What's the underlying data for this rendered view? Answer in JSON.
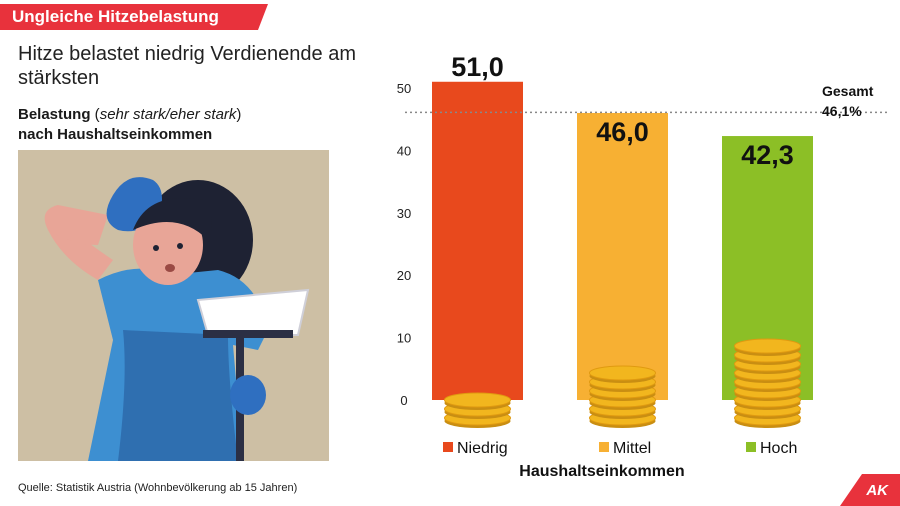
{
  "header": {
    "badge": "Ungleiche Hitzebelastung"
  },
  "headline": "Hitze belastet niedrig Verdienende am stärksten",
  "subtitle": {
    "bold_prefix": "Belastung",
    "italic": "sehr stark/eher stark",
    "line2": "nach Haushaltseinkommen"
  },
  "source": "Quelle: Statistik Austria (Wohnbevölkerung ab 15 Jahren)",
  "logo": "AK",
  "colors": {
    "banner": "#e8323c",
    "niedrig": "#e8491d",
    "mittel": "#f7b033",
    "hoch": "#8cbf26",
    "coin": "#f2b61e"
  },
  "chart_data": {
    "type": "bar",
    "categories": [
      "Niedrig",
      "Mittel",
      "Hoch"
    ],
    "values": [
      51.0,
      46.0,
      42.3
    ],
    "value_labels": [
      "51,0",
      "46,0",
      "42,3"
    ],
    "xlabel": "Haushaltseinkommen",
    "ylabel": "",
    "ylim": [
      0,
      50
    ],
    "yticks": [
      0,
      10,
      20,
      30,
      40,
      50
    ],
    "reference_line": {
      "value": 46.1,
      "label_line1": "Gesamt",
      "label_line2": "46,1%"
    },
    "legend": [
      "Niedrig",
      "Mittel",
      "Hoch"
    ]
  }
}
